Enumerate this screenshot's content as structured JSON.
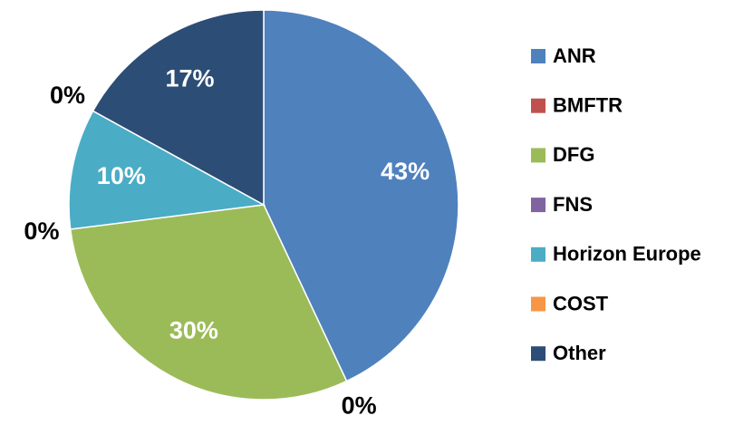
{
  "chart_data": {
    "type": "pie",
    "categories": [
      "ANR",
      "BMFTR",
      "DFG",
      "FNS",
      "Horizon Europe",
      "COST",
      "Other"
    ],
    "values": [
      43,
      0,
      30,
      0,
      10,
      0,
      17
    ],
    "value_labels": [
      "43%",
      "0%",
      "30%",
      "0%",
      "10%",
      "0%",
      "17%"
    ],
    "colors": [
      "#4f81bd",
      "#c0504d",
      "#9bbb59",
      "#8064a2",
      "#4bacc6",
      "#f79646",
      "#2c4d75"
    ],
    "legend": "right"
  }
}
